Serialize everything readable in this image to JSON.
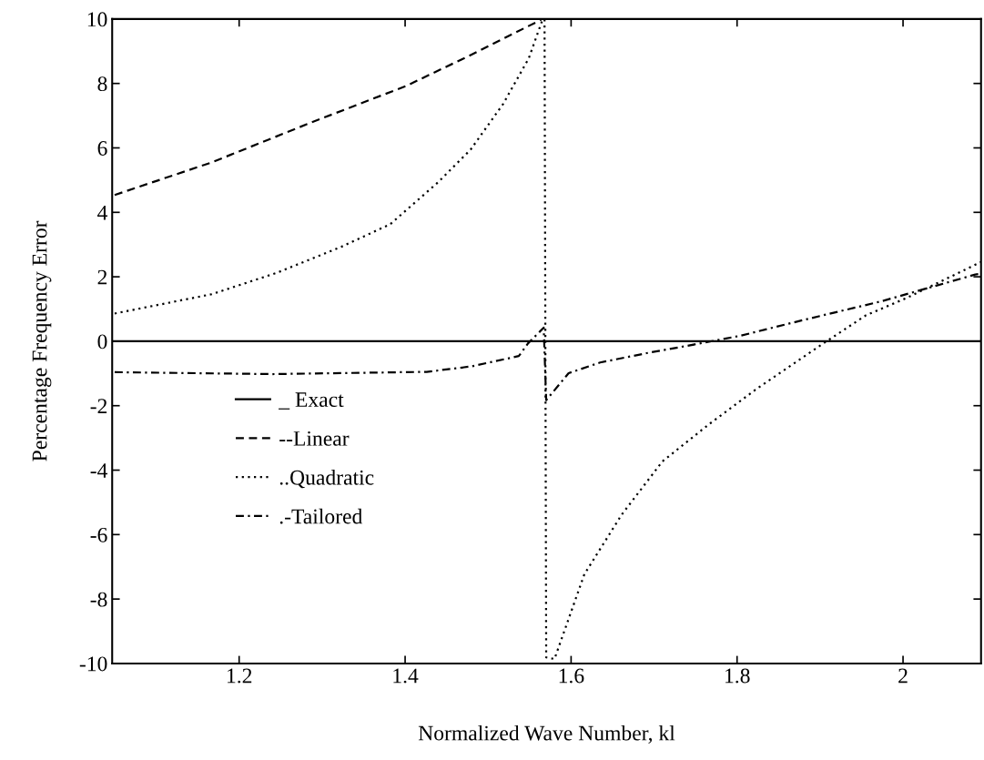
{
  "chart_data": {
    "type": "line",
    "xlabel": "Normalized Wave Number, kl",
    "ylabel": "Percentage Frequency Error",
    "xlim": [
      1.047,
      2.094
    ],
    "ylim": [
      -10,
      10
    ],
    "xticks": [
      1.2,
      1.4,
      1.6,
      1.8,
      2
    ],
    "yticks": [
      -10,
      -8,
      -6,
      -4,
      -2,
      0,
      2,
      4,
      6,
      8,
      10
    ],
    "grid": false,
    "legend": "bottom left",
    "marker": "none",
    "series": [
      {
        "name": "_ Exact",
        "color": "#000000",
        "line_style": "solid",
        "x": [
          1.047,
          2.094
        ],
        "values": [
          0,
          0
        ]
      },
      {
        "name": "--Linear",
        "color": "#000000",
        "line_style": "dashed",
        "x": [
          1.05,
          1.167,
          1.284,
          1.401,
          1.479,
          1.561,
          1.565
        ],
        "values": [
          4.54,
          5.55,
          6.76,
          7.92,
          8.88,
          9.94,
          10
        ]
      },
      {
        "name": "..Quadratic",
        "color": "#000000",
        "line_style": "dotted",
        "x": [
          1.05,
          1.167,
          1.245,
          1.323,
          1.382,
          1.44,
          1.479,
          1.518,
          1.549,
          1.565,
          1.568,
          1.57,
          1.58,
          1.616,
          1.661,
          1.71,
          1.767,
          1.823,
          1.898,
          1.955,
          2.004,
          2.094
        ],
        "values": [
          0.86,
          1.46,
          2.12,
          2.93,
          3.63,
          4.94,
          5.95,
          7.36,
          8.78,
          9.94,
          10,
          -9.81,
          -9.86,
          -7.23,
          -5.38,
          -3.73,
          -2.56,
          -1.49,
          -0.17,
          0.8,
          1.34,
          2.46
        ]
      },
      {
        "name": ".-Tailored",
        "color": "#000000",
        "line_style": "dashdot",
        "x": [
          1.05,
          1.24,
          1.426,
          1.48,
          1.503,
          1.537,
          1.548,
          1.567,
          1.57,
          1.597,
          1.635,
          1.691,
          1.755,
          1.804,
          1.88,
          1.974,
          2.087,
          2.094
        ],
        "values": [
          -0.96,
          -1.02,
          -0.95,
          -0.78,
          -0.65,
          -0.46,
          -0.07,
          0.42,
          -1.83,
          -0.99,
          -0.66,
          -0.37,
          -0.07,
          0.17,
          0.66,
          1.24,
          2.07,
          2.1
        ]
      }
    ]
  }
}
